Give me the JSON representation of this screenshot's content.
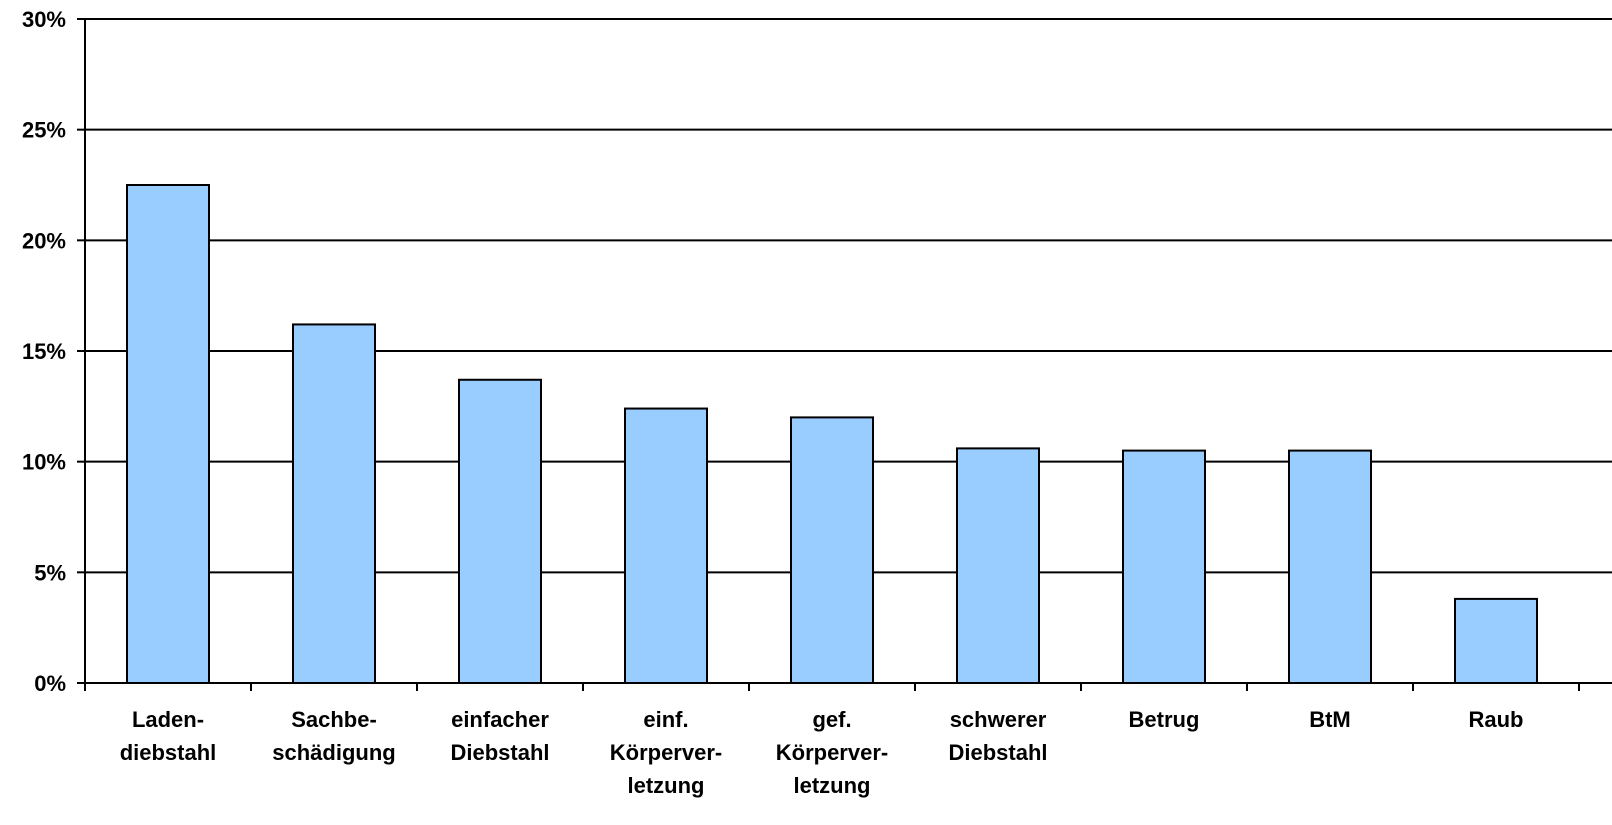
{
  "chart_data": {
    "type": "bar",
    "title": "",
    "xlabel": "",
    "ylabel": "",
    "ylim": [
      0,
      30
    ],
    "y_ticks": [
      "0%",
      "5%",
      "10%",
      "15%",
      "20%",
      "25%",
      "30%"
    ],
    "y_tick_values": [
      0,
      5,
      10,
      15,
      20,
      25,
      30
    ],
    "grid": true,
    "legend": "none",
    "bar_color": "#99CCFF",
    "categories": [
      [
        "Laden-",
        "diebstahl"
      ],
      [
        "Sachbe-",
        "schädigung"
      ],
      [
        "einfacher",
        "Diebstahl"
      ],
      [
        "einf.",
        "Körperver-",
        "letzung"
      ],
      [
        "gef.",
        "Körperver-",
        "letzung"
      ],
      [
        "schwerer",
        "Diebstahl"
      ],
      [
        "Betrug"
      ],
      [
        "BtM"
      ],
      [
        "Raub"
      ]
    ],
    "values": [
      22.5,
      16.2,
      13.7,
      12.4,
      12.0,
      10.6,
      10.5,
      10.5,
      3.8
    ]
  }
}
